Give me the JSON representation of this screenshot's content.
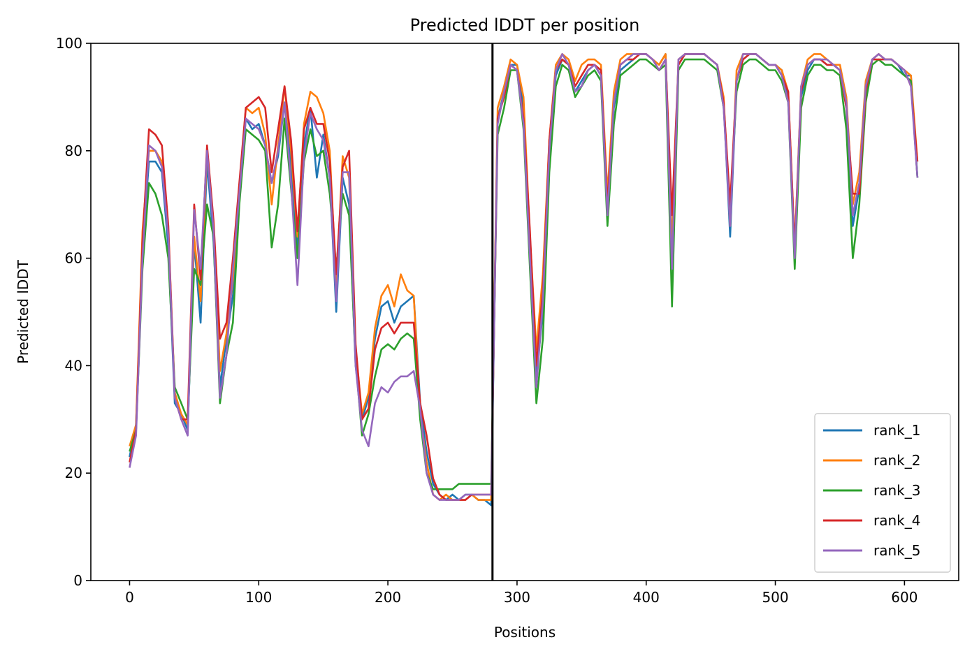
{
  "chart_data": {
    "type": "line",
    "title": "Predicted lDDT per position",
    "xlabel": "Positions",
    "ylabel": "Predicted lDDT",
    "xlim": [
      -30,
      642
    ],
    "ylim": [
      0,
      100
    ],
    "xticks": [
      0,
      100,
      200,
      300,
      400,
      500,
      600
    ],
    "yticks": [
      0,
      20,
      40,
      60,
      80,
      100
    ],
    "grid": false,
    "legend_position": "lower-right",
    "chain_break": 281,
    "x": [
      0,
      5,
      10,
      15,
      20,
      25,
      30,
      35,
      40,
      45,
      50,
      55,
      60,
      65,
      70,
      75,
      80,
      85,
      90,
      95,
      100,
      105,
      110,
      115,
      120,
      125,
      130,
      135,
      140,
      145,
      150,
      155,
      160,
      165,
      170,
      175,
      180,
      185,
      190,
      195,
      200,
      205,
      210,
      215,
      220,
      225,
      230,
      235,
      240,
      245,
      250,
      255,
      260,
      265,
      270,
      275,
      280,
      285,
      290,
      295,
      300,
      305,
      310,
      315,
      320,
      325,
      330,
      335,
      340,
      345,
      350,
      355,
      360,
      365,
      370,
      375,
      380,
      385,
      390,
      395,
      400,
      405,
      410,
      415,
      420,
      425,
      430,
      435,
      440,
      445,
      450,
      455,
      460,
      465,
      470,
      475,
      480,
      485,
      490,
      495,
      500,
      505,
      510,
      515,
      520,
      525,
      530,
      535,
      540,
      545,
      550,
      555,
      560,
      565,
      570,
      575,
      580,
      585,
      590,
      595,
      600,
      605,
      610
    ],
    "series": [
      {
        "name": "rank_1",
        "color": "#1f77b4",
        "values": [
          23,
          29,
          62,
          78,
          78,
          76,
          62,
          33,
          31,
          28,
          63,
          48,
          78,
          63,
          36,
          45,
          53,
          71,
          86,
          84,
          85,
          81,
          74,
          79,
          89,
          77,
          62,
          81,
          88,
          75,
          83,
          75,
          50,
          75,
          70,
          40,
          30,
          34,
          45,
          51,
          52,
          48,
          51,
          52,
          53,
          33,
          24,
          18,
          16,
          15,
          16,
          15,
          16,
          16,
          15,
          15,
          14,
          86,
          91,
          96,
          96,
          88,
          62,
          38,
          50,
          79,
          94,
          97,
          96,
          91,
          93,
          95,
          96,
          94,
          68,
          88,
          95,
          96,
          97,
          98,
          98,
          97,
          96,
          98,
          60,
          96,
          98,
          98,
          98,
          98,
          97,
          96,
          89,
          64,
          93,
          97,
          98,
          98,
          97,
          96,
          96,
          95,
          90,
          60,
          90,
          95,
          97,
          97,
          96,
          96,
          95,
          88,
          66,
          73,
          90,
          97,
          98,
          97,
          97,
          96,
          94,
          94,
          75
        ]
      },
      {
        "name": "rank_2",
        "color": "#ff7f0e",
        "values": [
          25,
          29,
          65,
          80,
          80,
          78,
          65,
          35,
          31,
          29,
          64,
          52,
          80,
          66,
          39,
          46,
          56,
          73,
          88,
          87,
          88,
          83,
          70,
          81,
          92,
          80,
          64,
          85,
          91,
          90,
          87,
          80,
          55,
          79,
          75,
          43,
          31,
          35,
          47,
          53,
          55,
          51,
          57,
          54,
          53,
          31,
          22,
          16,
          15,
          16,
          15,
          15,
          15,
          16,
          15,
          15,
          15,
          88,
          92,
          97,
          96,
          90,
          64,
          43,
          57,
          82,
          96,
          98,
          97,
          93,
          96,
          97,
          97,
          96,
          72,
          91,
          97,
          98,
          98,
          98,
          98,
          97,
          96,
          98,
          62,
          97,
          98,
          98,
          98,
          98,
          97,
          96,
          90,
          66,
          95,
          98,
          98,
          98,
          97,
          96,
          96,
          95,
          91,
          62,
          92,
          97,
          98,
          98,
          97,
          96,
          96,
          90,
          70,
          76,
          93,
          97,
          98,
          97,
          97,
          96,
          95,
          94,
          78
        ]
      },
      {
        "name": "rank_3",
        "color": "#2ca02c",
        "values": [
          24,
          28,
          58,
          74,
          72,
          68,
          60,
          36,
          33,
          30,
          58,
          55,
          70,
          64,
          33,
          42,
          48,
          70,
          84,
          83,
          82,
          80,
          62,
          70,
          86,
          73,
          60,
          78,
          84,
          79,
          80,
          72,
          58,
          72,
          68,
          41,
          27,
          31,
          38,
          43,
          44,
          43,
          45,
          46,
          45,
          30,
          20,
          17,
          17,
          17,
          17,
          18,
          18,
          18,
          18,
          18,
          18,
          83,
          88,
          95,
          95,
          84,
          58,
          33,
          45,
          76,
          92,
          96,
          95,
          90,
          92,
          94,
          95,
          93,
          66,
          85,
          94,
          95,
          96,
          97,
          97,
          96,
          95,
          96,
          51,
          95,
          97,
          97,
          97,
          97,
          96,
          95,
          88,
          69,
          91,
          96,
          97,
          97,
          96,
          95,
          95,
          93,
          89,
          58,
          88,
          94,
          96,
          96,
          95,
          95,
          94,
          84,
          60,
          70,
          89,
          96,
          97,
          96,
          96,
          95,
          94,
          93,
          75
        ]
      },
      {
        "name": "rank_4",
        "color": "#d62728",
        "values": [
          22,
          28,
          63,
          84,
          83,
          81,
          66,
          34,
          30,
          30,
          70,
          56,
          81,
          67,
          45,
          48,
          60,
          74,
          88,
          89,
          90,
          88,
          76,
          84,
          92,
          82,
          65,
          84,
          88,
          85,
          85,
          78,
          57,
          77,
          80,
          44,
          30,
          32,
          43,
          47,
          48,
          46,
          48,
          48,
          48,
          33,
          27,
          19,
          16,
          15,
          15,
          15,
          15,
          16,
          16,
          16,
          16,
          86,
          90,
          96,
          95,
          86,
          65,
          40,
          54,
          82,
          95,
          97,
          96,
          92,
          94,
          96,
          96,
          95,
          70,
          89,
          96,
          97,
          97,
          98,
          98,
          97,
          95,
          97,
          68,
          96,
          98,
          98,
          98,
          98,
          97,
          96,
          89,
          70,
          93,
          97,
          98,
          98,
          97,
          96,
          96,
          94,
          91,
          62,
          91,
          96,
          97,
          97,
          96,
          96,
          95,
          88,
          72,
          72,
          91,
          97,
          97,
          97,
          97,
          96,
          95,
          92,
          78
        ]
      },
      {
        "name": "rank_5",
        "color": "#9467bd",
        "values": [
          21,
          27,
          60,
          81,
          80,
          77,
          64,
          34,
          30,
          27,
          69,
          58,
          80,
          65,
          34,
          42,
          58,
          72,
          86,
          85,
          84,
          81,
          74,
          80,
          89,
          74,
          55,
          79,
          87,
          84,
          82,
          75,
          52,
          76,
          76,
          40,
          28,
          25,
          33,
          36,
          35,
          37,
          38,
          38,
          39,
          32,
          20,
          16,
          15,
          15,
          15,
          15,
          16,
          16,
          16,
          16,
          16,
          85,
          91,
          96,
          95,
          85,
          60,
          36,
          52,
          80,
          95,
          98,
          96,
          91,
          92,
          95,
          96,
          94,
          68,
          89,
          96,
          97,
          98,
          98,
          98,
          97,
          95,
          97,
          58,
          97,
          98,
          98,
          98,
          98,
          97,
          96,
          88,
          66,
          93,
          98,
          98,
          98,
          97,
          96,
          96,
          94,
          89,
          60,
          92,
          96,
          97,
          97,
          97,
          96,
          95,
          89,
          68,
          74,
          92,
          97,
          98,
          97,
          97,
          96,
          95,
          92,
          75
        ]
      }
    ]
  }
}
